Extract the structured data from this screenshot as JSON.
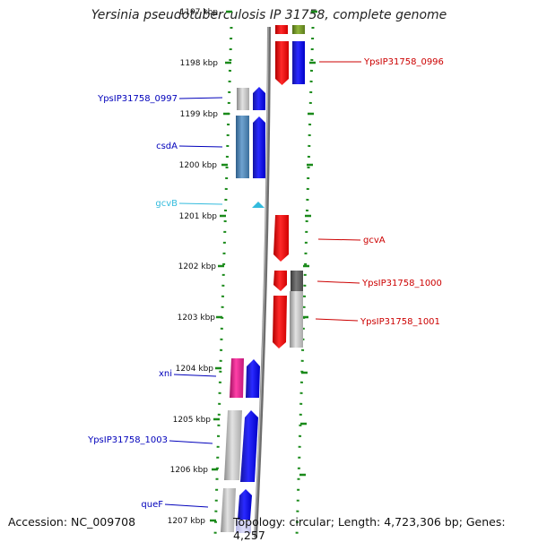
{
  "title": "Yersinia pseudotuberculosis IP 31758, complete genome",
  "accession": "Accession: NC_009708",
  "topology": "Topology: circular; Length: 4,723,306 bp; Genes: 4,257",
  "ticks": [
    {
      "label": "1197 kbp",
      "pos_kbp": 1197
    },
    {
      "label": "1198 kbp",
      "pos_kbp": 1198
    },
    {
      "label": "1199 kbp",
      "pos_kbp": 1199
    },
    {
      "label": "1200 kbp",
      "pos_kbp": 1200
    },
    {
      "label": "1201 kbp",
      "pos_kbp": 1201
    },
    {
      "label": "1202 kbp",
      "pos_kbp": 1202
    },
    {
      "label": "1203 kbp",
      "pos_kbp": 1203
    },
    {
      "label": "1204 kbp",
      "pos_kbp": 1204
    },
    {
      "label": "1205 kbp",
      "pos_kbp": 1205
    },
    {
      "label": "1206 kbp",
      "pos_kbp": 1206
    },
    {
      "label": "1207 kbp",
      "pos_kbp": 1207
    }
  ],
  "genes": [
    {
      "name": "YpsIP31758_0997",
      "side": "left",
      "color": "#0000bb"
    },
    {
      "name": "csdA",
      "side": "left",
      "color": "#0000bb"
    },
    {
      "name": "gcvB",
      "side": "left",
      "color": "#33bbdd"
    },
    {
      "name": "xni",
      "side": "left",
      "color": "#0000bb"
    },
    {
      "name": "YpsIP31758_1003",
      "side": "left",
      "color": "#0000bb"
    },
    {
      "name": "queF",
      "side": "left",
      "color": "#0000bb"
    },
    {
      "name": "YpsIP31758_0996",
      "side": "right",
      "color": "#cc0000"
    },
    {
      "name": "gcvA",
      "side": "right",
      "color": "#cc0000"
    },
    {
      "name": "YpsIP31758_1000",
      "side": "right",
      "color": "#cc0000"
    },
    {
      "name": "YpsIP31758_1001",
      "side": "right",
      "color": "#cc0000"
    }
  ],
  "colors": {
    "forward_cds": "#0000ff",
    "reverse_cds": "#ff0000",
    "cog_blue": "#4682b4",
    "cog_pink": "#e0218a",
    "cog_gray": "#c0c0c0",
    "cog_dark": "#555555",
    "cog_olive": "#6b8e23",
    "rna": "#33bbdd",
    "backbone": "#808080",
    "dots": "#1a8a1a"
  }
}
